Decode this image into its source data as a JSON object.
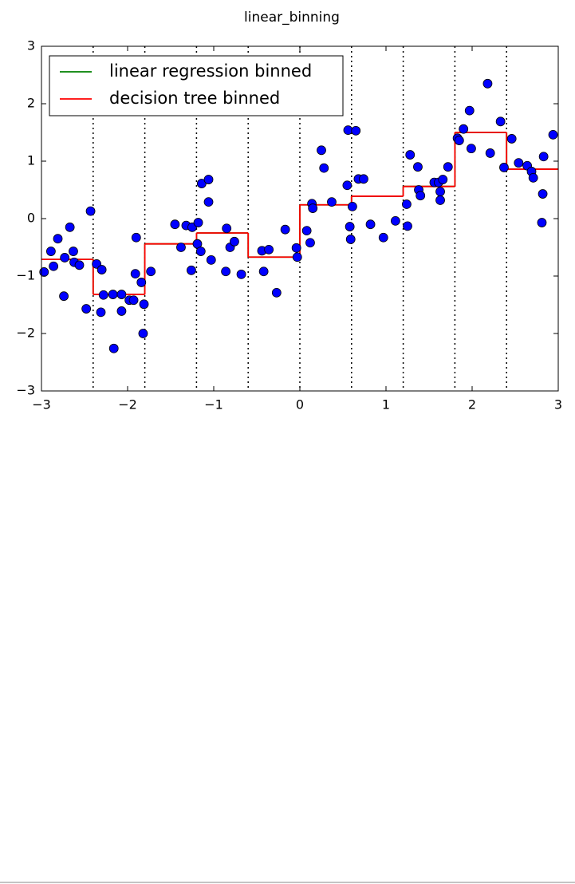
{
  "chart_data": {
    "type": "binned-scatter",
    "title": "linear_binning",
    "xlim": [
      -3,
      3
    ],
    "ylim": [
      -3,
      3
    ],
    "xticks": [
      {
        "value": -3,
        "label": "−3"
      },
      {
        "value": -2,
        "label": "−2"
      },
      {
        "value": -1,
        "label": "−1"
      },
      0,
      1,
      2,
      3
    ],
    "yticks": [
      {
        "value": -3,
        "label": "−3"
      },
      {
        "value": -2,
        "label": "−2"
      },
      {
        "value": -1,
        "label": "−1"
      },
      0,
      1,
      2,
      3
    ],
    "bins": [
      -3,
      -2.4,
      -1.8,
      -1.2,
      -0.6,
      0,
      0.6,
      1.2,
      1.8,
      2.4,
      3
    ],
    "legend": "upper left",
    "series": [
      {
        "name": "linear regression binned",
        "color": "#008000",
        "values": [
          -0.71,
          -1.32,
          -0.44,
          -0.25,
          -0.67,
          0.24,
          0.39,
          0.56,
          1.5,
          0.86
        ]
      },
      {
        "name": "decision tree binned",
        "color": "#ff0000",
        "values": [
          -0.71,
          -1.32,
          -0.44,
          -0.25,
          -0.67,
          0.24,
          0.39,
          0.56,
          1.5,
          0.86
        ]
      }
    ],
    "points": {
      "color": "#0000ff",
      "x": [
        -2.97,
        -2.86,
        -2.89,
        -2.81,
        -2.74,
        -2.73,
        -2.67,
        -2.63,
        -2.62,
        -2.56,
        -2.48,
        -2.43,
        -2.36,
        -2.3,
        -2.31,
        -2.28,
        -2.17,
        -2.16,
        -2.07,
        -2.07,
        -1.98,
        -1.93,
        -1.91,
        -1.9,
        -1.84,
        -1.81,
        -1.82,
        -1.73,
        -1.45,
        -1.38,
        -1.32,
        -1.26,
        -1.25,
        -1.19,
        -1.18,
        -1.15,
        -1.14,
        -1.06,
        -1.06,
        -1.03,
        -0.86,
        -0.85,
        -0.81,
        -0.76,
        -0.68,
        -0.44,
        -0.42,
        -0.36,
        -0.27,
        -0.17,
        -0.04,
        -0.03,
        0.08,
        0.12,
        0.14,
        0.15,
        0.25,
        0.28,
        0.37,
        0.55,
        0.56,
        0.58,
        0.59,
        0.61,
        0.65,
        0.68,
        0.74,
        0.82,
        0.97,
        1.11,
        1.24,
        1.25,
        1.28,
        1.37,
        1.38,
        1.4,
        1.56,
        1.61,
        1.63,
        1.63,
        1.66,
        1.72,
        1.83,
        1.85,
        1.9,
        1.97,
        1.99,
        2.18,
        2.21,
        2.33,
        2.37,
        2.46,
        2.54,
        2.64,
        2.69,
        2.71,
        2.81,
        2.82,
        2.83,
        2.94
      ],
      "y": [
        -0.93,
        -0.83,
        -0.57,
        -0.35,
        -1.35,
        -0.68,
        -0.15,
        -0.57,
        -0.76,
        -0.81,
        -1.57,
        0.13,
        -0.79,
        -0.89,
        -1.63,
        -1.33,
        -1.32,
        -2.26,
        -1.32,
        -1.61,
        -1.42,
        -1.42,
        -0.96,
        -0.33,
        -1.11,
        -1.49,
        -2.0,
        -0.92,
        -0.1,
        -0.5,
        -0.12,
        -0.9,
        -0.15,
        -0.44,
        -0.07,
        -0.57,
        0.61,
        0.68,
        0.29,
        -0.72,
        -0.92,
        -0.17,
        -0.5,
        -0.4,
        -0.97,
        -0.56,
        -0.92,
        -0.54,
        -1.29,
        -0.19,
        -0.51,
        -0.67,
        -0.21,
        -0.42,
        0.26,
        0.18,
        1.19,
        0.88,
        0.29,
        0.58,
        1.54,
        -0.14,
        -0.36,
        0.21,
        1.53,
        0.69,
        0.69,
        -0.1,
        -0.33,
        -0.04,
        0.25,
        -0.13,
        1.11,
        0.9,
        0.5,
        0.4,
        0.63,
        0.63,
        0.47,
        0.32,
        0.68,
        0.9,
        1.4,
        1.36,
        1.56,
        1.88,
        1.22,
        2.35,
        1.14,
        1.69,
        0.89,
        1.39,
        0.97,
        0.92,
        0.82,
        0.71,
        -0.07,
        0.43,
        1.08,
        1.46
      ]
    }
  }
}
